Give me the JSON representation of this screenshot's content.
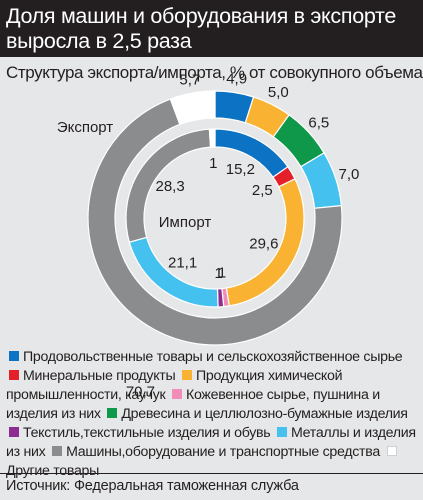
{
  "header": {
    "title": "Доля машин и оборудования в экспорте выросла в 2,5 раза",
    "subtitle": "Структура экспорта/импорта, % от совокупного объема"
  },
  "source": "Источник: Федеральная таможенная служба",
  "chart_data": {
    "type": "pie",
    "title": "Доля машин и оборудования в экспорте выросла в 2,5 раза",
    "subtitle": "Структура экспорта/импорта, % от совокупного объема",
    "legend_placement": "bottom",
    "categories": [
      {
        "name": "Продовольственные товары и сельскохозяйственное сырье",
        "color": "#0b72c4"
      },
      {
        "name": "Минеральные продукты",
        "color": "#e4202a"
      },
      {
        "name": "Продукция химической промышленности, каучук",
        "color": "#f9b232"
      },
      {
        "name": "Кожевенное сырье, пушнина и изделия из них",
        "color": "#f28cb9"
      },
      {
        "name": "Древесина и целлюлозно-бумажные изделия",
        "color": "#10984a"
      },
      {
        "name": "Текстиль,текстильные изделия и обувь",
        "color": "#8e2c8f"
      },
      {
        "name": "Металлы и изделия из них",
        "color": "#44c1ef"
      },
      {
        "name": "Машины,оборудование и транспортные средства",
        "color": "#8a8c8e"
      },
      {
        "name": "Другие товары",
        "color": "#ffffff"
      }
    ],
    "series": [
      {
        "name": "Экспорт",
        "ring": "outer",
        "values": [
          4.9,
          0,
          5.0,
          0,
          6.5,
          0,
          7.0,
          70.7,
          5.7
        ],
        "labels": [
          "4,9",
          "",
          "5,0",
          "",
          "6,5",
          "",
          "7,0",
          "70,7",
          "5,7"
        ]
      },
      {
        "name": "Импорт",
        "ring": "inner",
        "values": [
          15.2,
          2.5,
          29.6,
          1,
          0,
          1,
          21.1,
          28.3,
          1
        ],
        "labels": [
          "15,2",
          "2,5",
          "29,6",
          "1",
          "",
          "1",
          "21,1",
          "28,3",
          "1"
        ]
      }
    ]
  }
}
